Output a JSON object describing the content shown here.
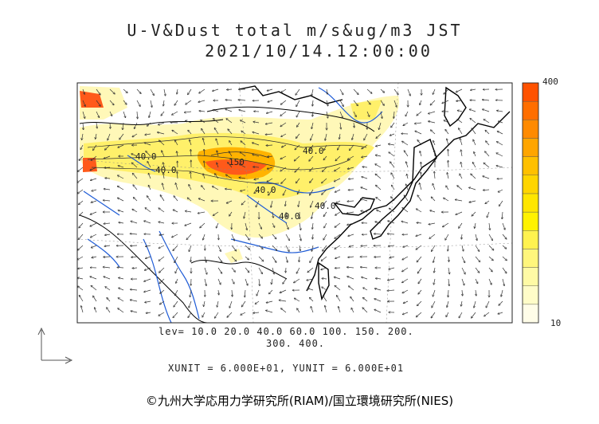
{
  "header": {
    "line1": "U-V&Dust total m/s&ug/m3 JST",
    "line2": "2021/10/14.12:00:00"
  },
  "colorbar": {
    "max_label": "400",
    "min_label": "10",
    "colors": [
      "#fffde8",
      "#fffcc8",
      "#fffaa5",
      "#fff67c",
      "#fff24f",
      "#fff200",
      "#ffe600",
      "#ffd500",
      "#ffc000",
      "#ffa500",
      "#ff8a00",
      "#ff6e00",
      "#ff5200"
    ]
  },
  "legend": {
    "levels_line1": "lev= 10.0 20.0 40.0 60.0 100. 150. 200.",
    "levels_line2": "300. 400.",
    "unit_line": "XUNIT = 6.000E+01, YUNIT = 6.000E+01"
  },
  "contour_labels": [
    "40.0",
    "40.0",
    "40.0",
    "150",
    "40.0",
    "40.0",
    "40.0"
  ],
  "credit": "©九州大学応用力学研究所(RIAM)/国立環境研究所(NIES)",
  "colors": {
    "coast": "#000000",
    "rivers": "#1e5bd6",
    "dust_low": "#fff6a8",
    "dust_high": "#ff5a1a"
  }
}
